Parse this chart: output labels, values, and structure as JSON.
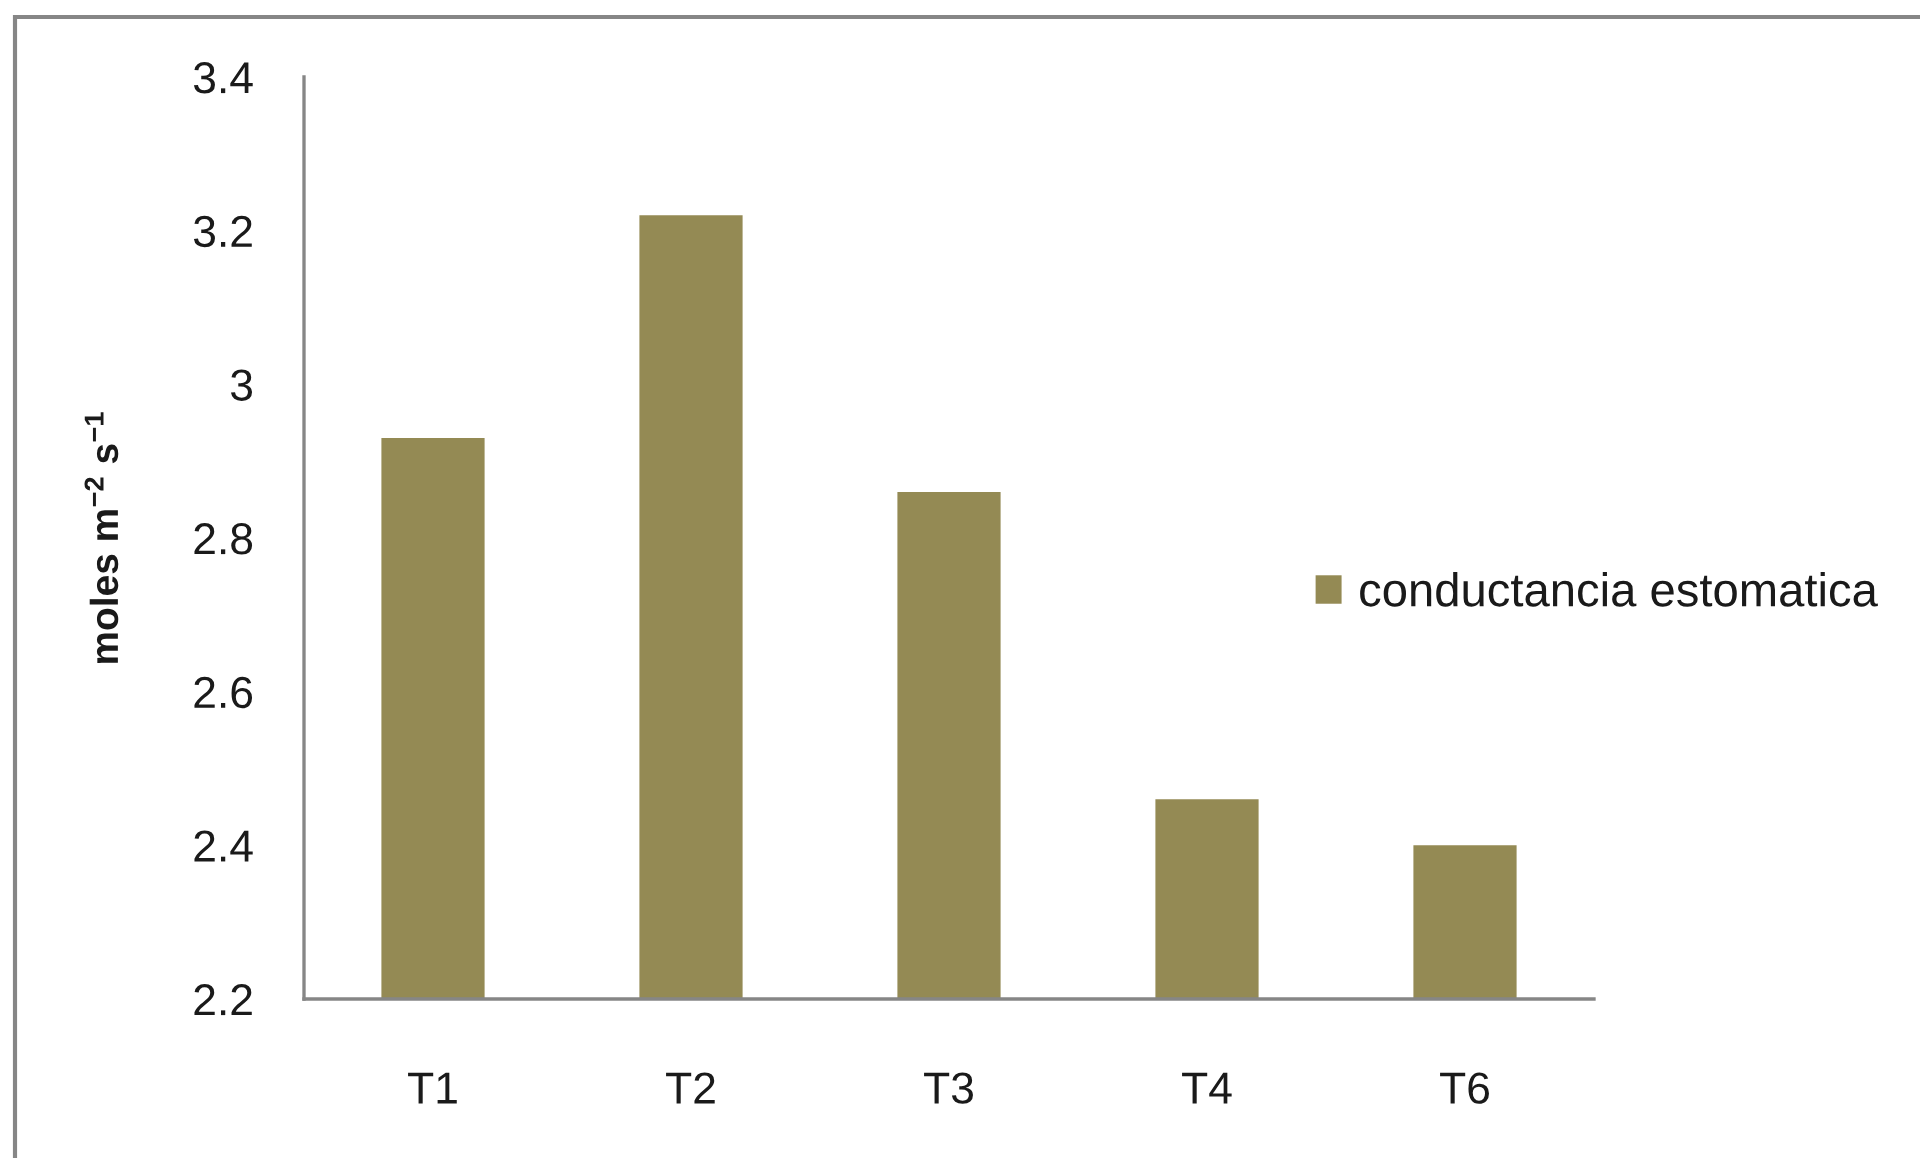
{
  "chart_data": {
    "type": "bar",
    "ylabel": "moles m$^{−2}$ s$^{−1}$",
    "categories": [
      "T1",
      "T2",
      "T3",
      "T4",
      "T6"
    ],
    "series": [
      {
        "name": "conductancia estomatica",
        "color": "#948a54",
        "values": [
          2.93,
          3.22,
          2.86,
          2.46,
          2.4
        ]
      }
    ],
    "ylim": [
      2.2,
      3.4
    ],
    "yticks": [
      2.2,
      2.4,
      2.6,
      2.8,
      3,
      3.2,
      3.4
    ],
    "grid": false,
    "legend": "right"
  }
}
